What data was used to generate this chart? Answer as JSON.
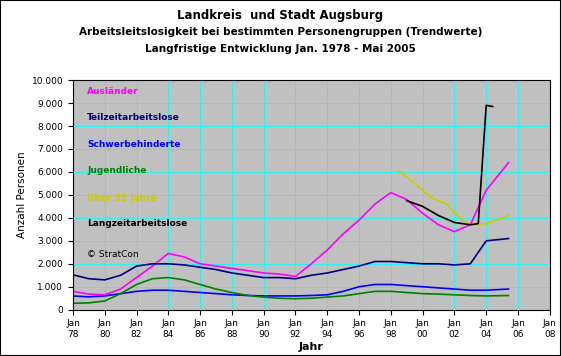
{
  "title1": "Landkreis  und Stadt Augsburg",
  "title2": "Arbeitsleitslosigkeit bei bestimmten Personengruppen (Trendwerte)",
  "title3": "Langfristige Entwicklung Jan. 1978 - Mai 2005",
  "xlabel": "Jahr",
  "ylabel": "Anzahl Personen",
  "copyright": "© StratCon",
  "figure_bg": "#FFFFFF",
  "plot_bg_color": "#C0C0C0",
  "ylim": [
    0,
    10000
  ],
  "yticks": [
    0,
    1000,
    2000,
    3000,
    4000,
    5000,
    6000,
    7000,
    8000,
    9000,
    10000
  ],
  "xtick_years": [
    1978,
    1980,
    1982,
    1984,
    1986,
    1988,
    1990,
    1992,
    1994,
    1996,
    1998,
    2000,
    2002,
    2004,
    2006,
    2008
  ],
  "xlim": [
    1978,
    2008
  ],
  "legend": [
    {
      "label": "Ausländer",
      "color": "#FF00FF"
    },
    {
      "label": "Teilzeitarbeitslose",
      "color": "#000080"
    },
    {
      "label": "Schwerbehinderte",
      "color": "#0000FF"
    },
    {
      "label": "Jugendliche",
      "color": "#008000"
    },
    {
      "Über 55 Jahre": "Über 55 Jahre",
      "label": "Über 55 Jahre",
      "color": "#CCCC00"
    },
    {
      "label": "Langzeitarbeitslose",
      "color": "#000000"
    }
  ],
  "series": {
    "auslaender": {
      "color": "#FF00FF",
      "years": [
        1978,
        1979,
        1980,
        1981,
        1982,
        1983,
        1984,
        1985,
        1986,
        1987,
        1988,
        1989,
        1990,
        1991,
        1992,
        1993,
        1994,
        1995,
        1996,
        1997,
        1998,
        1999,
        2000,
        2001,
        2002,
        2003,
        2004,
        2005.4
      ],
      "values": [
        800,
        680,
        650,
        900,
        1400,
        1900,
        2450,
        2300,
        2000,
        1900,
        1800,
        1700,
        1600,
        1550,
        1450,
        2000,
        2600,
        3300,
        3900,
        4600,
        5100,
        4800,
        4200,
        3700,
        3400,
        3700,
        5200,
        6400
      ]
    },
    "teilzeit": {
      "color": "#000080",
      "years": [
        1978,
        1979,
        1980,
        1981,
        1982,
        1983,
        1984,
        1985,
        1986,
        1987,
        1988,
        1989,
        1990,
        1991,
        1992,
        1993,
        1994,
        1995,
        1996,
        1997,
        1998,
        1999,
        2000,
        2001,
        2002,
        2003,
        2004,
        2005.4
      ],
      "values": [
        1520,
        1350,
        1300,
        1500,
        1900,
        2000,
        2000,
        1950,
        1850,
        1750,
        1600,
        1500,
        1400,
        1400,
        1350,
        1500,
        1600,
        1750,
        1900,
        2100,
        2100,
        2050,
        2000,
        2000,
        1950,
        2000,
        3000,
        3100
      ]
    },
    "schwer": {
      "color": "#0000FF",
      "years": [
        1978,
        1979,
        1980,
        1981,
        1982,
        1983,
        1984,
        1985,
        1986,
        1987,
        1988,
        1989,
        1990,
        1991,
        1992,
        1993,
        1994,
        1995,
        1996,
        1997,
        1998,
        1999,
        2000,
        2001,
        2002,
        2003,
        2004,
        2005.4
      ],
      "values": [
        600,
        560,
        600,
        700,
        800,
        850,
        850,
        800,
        750,
        700,
        650,
        620,
        600,
        600,
        600,
        620,
        650,
        800,
        1000,
        1100,
        1100,
        1050,
        1000,
        950,
        900,
        850,
        850,
        900
      ]
    },
    "jugend": {
      "color": "#008000",
      "years": [
        1978,
        1979,
        1980,
        1981,
        1982,
        1983,
        1984,
        1985,
        1986,
        1987,
        1988,
        1989,
        1990,
        1991,
        1992,
        1993,
        1994,
        1995,
        1996,
        1997,
        1998,
        1999,
        2000,
        2001,
        2002,
        2003,
        2004,
        2005.4
      ],
      "values": [
        280,
        300,
        380,
        700,
        1100,
        1350,
        1400,
        1300,
        1100,
        900,
        750,
        620,
        550,
        500,
        480,
        500,
        550,
        600,
        700,
        800,
        800,
        750,
        700,
        680,
        650,
        620,
        600,
        620
      ]
    },
    "ueber55": {
      "color": "#CCCC00",
      "years": [
        1998.5,
        1999.5,
        2000.5,
        2001.5,
        2002,
        2002.5,
        2003,
        2004,
        2005.4
      ],
      "values": [
        6050,
        5500,
        4900,
        4600,
        4200,
        3900,
        3700,
        3750,
        4100
      ]
    },
    "langzeit": {
      "color": "#000000",
      "years": [
        1999,
        2000,
        2001,
        2002,
        2002.5,
        2003,
        2003.5,
        2004,
        2004.4
      ],
      "values": [
        4750,
        4500,
        4100,
        3800,
        3750,
        3700,
        3750,
        8900,
        8850
      ]
    }
  }
}
